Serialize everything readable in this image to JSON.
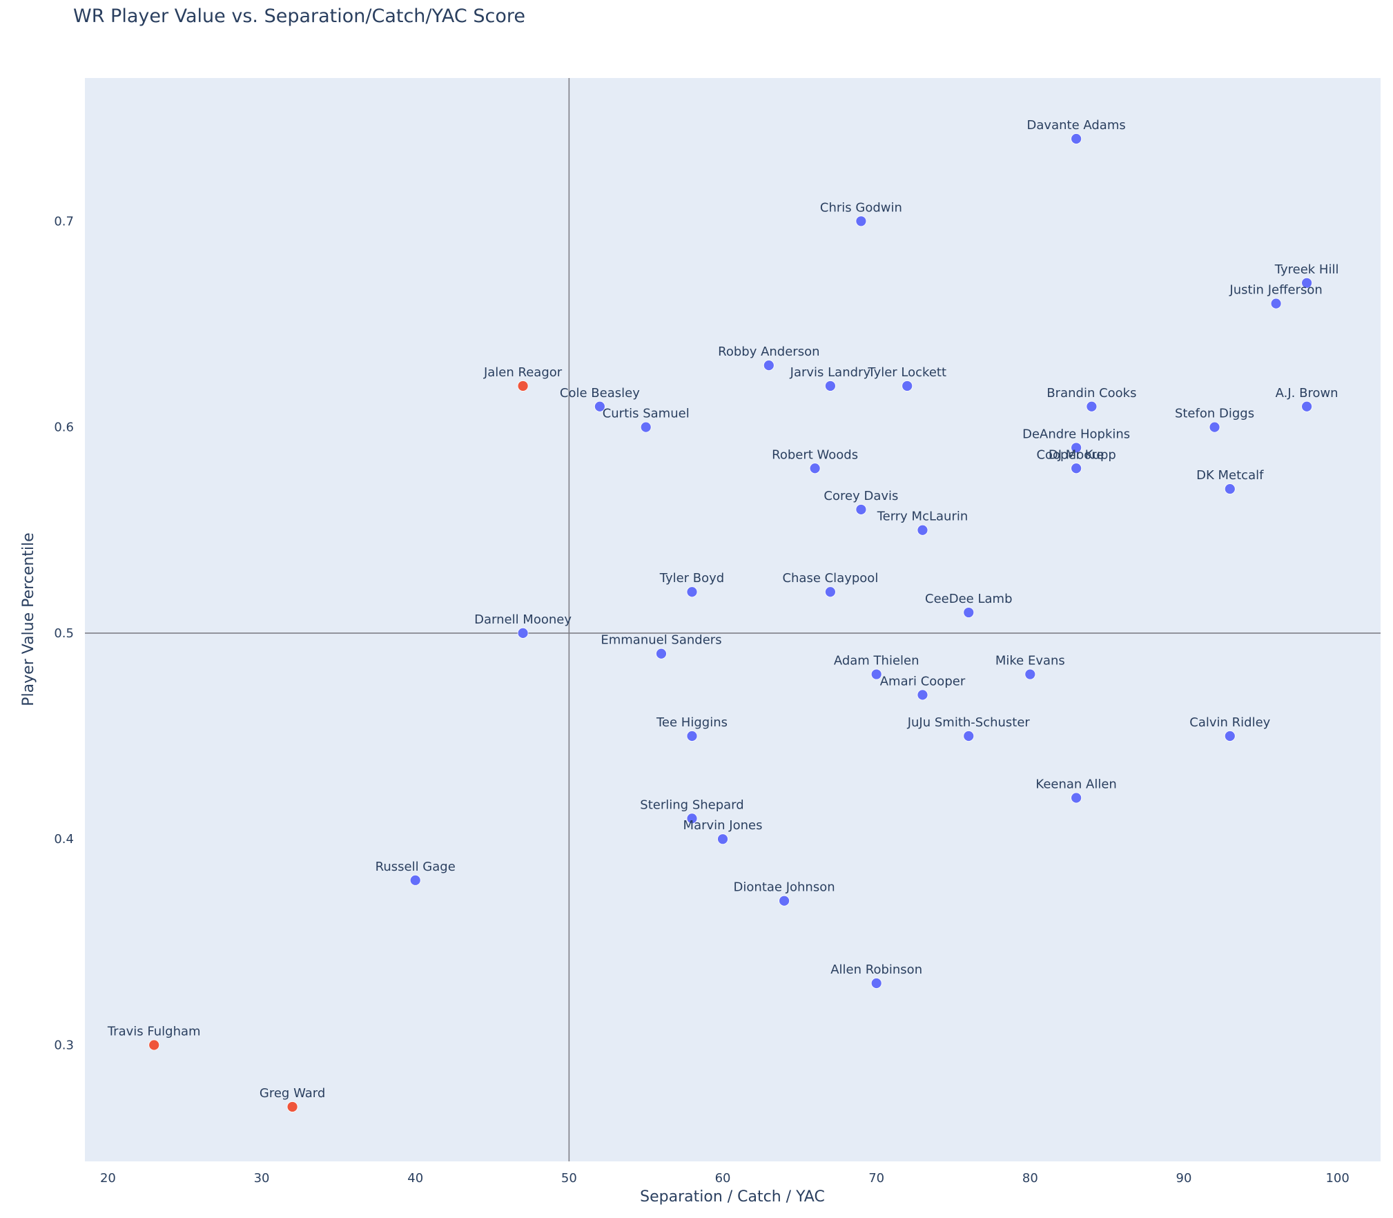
{
  "chart_data": {
    "type": "scatter",
    "title": "WR Player Value vs. Separation/Catch/YAC Score",
    "xlabel": "Separation / Catch / YAC",
    "ylabel": "Player Value Percentile",
    "xlim": [
      18.5,
      102.8
    ],
    "ylim": [
      0.2435,
      0.7695
    ],
    "xticks": [
      20,
      30,
      40,
      50,
      60,
      70,
      80,
      90,
      100
    ],
    "xtick_labels": [
      "20",
      "30",
      "40",
      "50",
      "60",
      "70",
      "80",
      "90",
      "100"
    ],
    "yticks": [
      0.3,
      0.4,
      0.5,
      0.6,
      0.7
    ],
    "ytick_labels": [
      "0.3",
      "0.4",
      "0.5",
      "0.6",
      "0.7"
    ],
    "reference_lines": {
      "x": 50,
      "y": 0.5
    },
    "grid": false,
    "legend": "none",
    "colors": {
      "default": "#636efa",
      "highlight": "#ef553b",
      "reference_line": "#7f7f87"
    },
    "points": [
      {
        "name": "Davante Adams",
        "x": 83,
        "y": 0.74,
        "color": "#636efa"
      },
      {
        "name": "Chris Godwin",
        "x": 69,
        "y": 0.7,
        "color": "#636efa"
      },
      {
        "name": "Tyreek Hill",
        "x": 98,
        "y": 0.67,
        "color": "#636efa"
      },
      {
        "name": "Justin Jefferson",
        "x": 96,
        "y": 0.66,
        "color": "#636efa"
      },
      {
        "name": "Robby Anderson",
        "x": 63,
        "y": 0.63,
        "color": "#636efa"
      },
      {
        "name": "Jalen Reagor",
        "x": 47,
        "y": 0.62,
        "color": "#ef553b"
      },
      {
        "name": "Jarvis Landry",
        "x": 67,
        "y": 0.62,
        "color": "#636efa"
      },
      {
        "name": "Tyler Lockett",
        "x": 72,
        "y": 0.62,
        "color": "#636efa"
      },
      {
        "name": "Cole Beasley",
        "x": 52,
        "y": 0.61,
        "color": "#636efa"
      },
      {
        "name": "Brandin Cooks",
        "x": 84,
        "y": 0.61,
        "color": "#636efa"
      },
      {
        "name": "A.J. Brown",
        "x": 98,
        "y": 0.61,
        "color": "#636efa"
      },
      {
        "name": "Curtis Samuel",
        "x": 55,
        "y": 0.6,
        "color": "#636efa"
      },
      {
        "name": "Stefon Diggs",
        "x": 92,
        "y": 0.6,
        "color": "#636efa"
      },
      {
        "name": "DeAndre Hopkins",
        "x": 83,
        "y": 0.59,
        "color": "#636efa"
      },
      {
        "name": "Robert Woods",
        "x": 66,
        "y": 0.58,
        "color": "#636efa"
      },
      {
        "name": "Cooper Kupp",
        "x": 83,
        "y": 0.58,
        "color": "#636efa"
      },
      {
        "name": "DJ Moore",
        "x": 83,
        "y": 0.58,
        "color": "#636efa"
      },
      {
        "name": "DK Metcalf",
        "x": 93,
        "y": 0.57,
        "color": "#636efa"
      },
      {
        "name": "Corey Davis",
        "x": 69,
        "y": 0.56,
        "color": "#636efa"
      },
      {
        "name": "Terry McLaurin",
        "x": 73,
        "y": 0.55,
        "color": "#636efa"
      },
      {
        "name": "Tyler Boyd",
        "x": 58,
        "y": 0.52,
        "color": "#636efa"
      },
      {
        "name": "Chase Claypool",
        "x": 67,
        "y": 0.52,
        "color": "#636efa"
      },
      {
        "name": "CeeDee Lamb",
        "x": 76,
        "y": 0.51,
        "color": "#636efa"
      },
      {
        "name": "Darnell Mooney",
        "x": 47,
        "y": 0.5,
        "color": "#636efa"
      },
      {
        "name": "Emmanuel Sanders",
        "x": 56,
        "y": 0.49,
        "color": "#636efa"
      },
      {
        "name": "Adam Thielen",
        "x": 70,
        "y": 0.48,
        "color": "#636efa"
      },
      {
        "name": "Mike Evans",
        "x": 80,
        "y": 0.48,
        "color": "#636efa"
      },
      {
        "name": "Amari Cooper",
        "x": 73,
        "y": 0.47,
        "color": "#636efa"
      },
      {
        "name": "Tee Higgins",
        "x": 58,
        "y": 0.45,
        "color": "#636efa"
      },
      {
        "name": "JuJu Smith-Schuster",
        "x": 76,
        "y": 0.45,
        "color": "#636efa"
      },
      {
        "name": "Calvin Ridley",
        "x": 93,
        "y": 0.45,
        "color": "#636efa"
      },
      {
        "name": "Keenan Allen",
        "x": 83,
        "y": 0.42,
        "color": "#636efa"
      },
      {
        "name": "Sterling Shepard",
        "x": 58,
        "y": 0.41,
        "color": "#636efa"
      },
      {
        "name": "Marvin Jones",
        "x": 60,
        "y": 0.4,
        "color": "#636efa"
      },
      {
        "name": "Russell Gage",
        "x": 40,
        "y": 0.38,
        "color": "#636efa"
      },
      {
        "name": "Diontae Johnson",
        "x": 64,
        "y": 0.37,
        "color": "#636efa"
      },
      {
        "name": "Allen Robinson",
        "x": 70,
        "y": 0.33,
        "color": "#636efa"
      },
      {
        "name": "Travis Fulgham",
        "x": 23,
        "y": 0.3,
        "color": "#ef553b"
      },
      {
        "name": "Greg Ward",
        "x": 32,
        "y": 0.27,
        "color": "#ef553b"
      }
    ]
  }
}
